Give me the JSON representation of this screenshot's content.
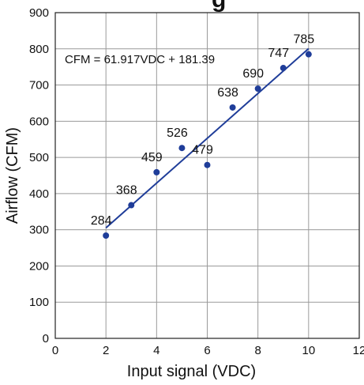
{
  "chart_data": {
    "type": "scatter",
    "title_fragment": "g",
    "xlabel": "Input signal (VDC)",
    "ylabel": "Airflow (CFM)",
    "xlim": [
      0,
      12
    ],
    "ylim": [
      0,
      900
    ],
    "x_ticks": [
      0,
      2,
      4,
      6,
      8,
      10,
      12
    ],
    "y_ticks": [
      0,
      100,
      200,
      300,
      400,
      500,
      600,
      700,
      800,
      900
    ],
    "grid": true,
    "legend": "none",
    "point_color": "#1f3d99",
    "line_color": "#1f3d99",
    "series": [
      {
        "x": [
          2,
          3,
          4,
          5,
          6,
          7,
          8,
          9,
          10
        ],
        "y": [
          284,
          368,
          459,
          526,
          479,
          638,
          690,
          747,
          785
        ],
        "labels": [
          "284",
          "368",
          "459",
          "526",
          "479",
          "638",
          "690",
          "747",
          "785"
        ]
      }
    ],
    "trendline": {
      "slope": 61.917,
      "intercept": 181.39,
      "x_range": [
        2,
        10
      ],
      "equation": "CFM = 61.917VDC + 181.39"
    }
  }
}
